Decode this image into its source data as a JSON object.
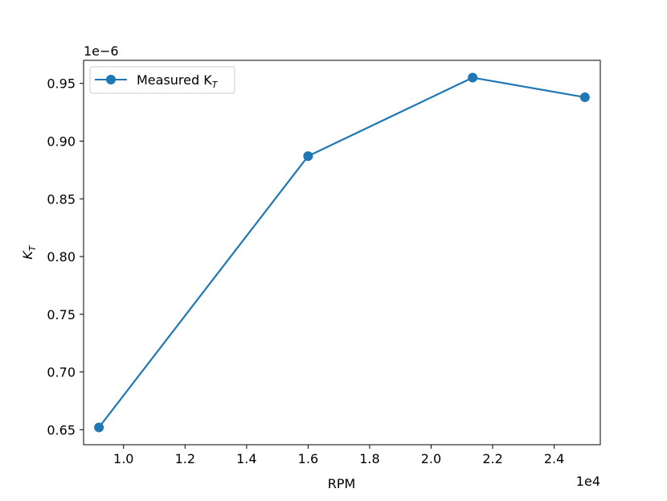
{
  "chart_data": {
    "type": "line",
    "x_scale_label": "1e4",
    "y_scale_label": "1e−6",
    "xlabel": "RPM",
    "ylabel": {
      "main": "K",
      "sub": "T"
    },
    "xlim": [
      0.87,
      2.55
    ],
    "ylim": [
      0.637,
      0.97
    ],
    "x_ticks": [
      1.0,
      1.2,
      1.4,
      1.6,
      1.8,
      2.0,
      2.2,
      2.4
    ],
    "x_tick_labels": [
      "1.0",
      "1.2",
      "1.4",
      "1.6",
      "1.8",
      "2.0",
      "2.2",
      "2.4"
    ],
    "y_ticks": [
      0.65,
      0.7,
      0.75,
      0.8,
      0.85,
      0.9,
      0.95
    ],
    "y_tick_labels": [
      "0.65",
      "0.70",
      "0.75",
      "0.80",
      "0.85",
      "0.90",
      "0.95"
    ],
    "legend": {
      "position": "upper-left",
      "label_main": "Measured K",
      "label_sub": "T"
    },
    "grid": false,
    "series": [
      {
        "color": "#1f77b4",
        "marker": "circle",
        "x": [
          0.92,
          1.6,
          2.135,
          2.5
        ],
        "y": [
          0.652,
          0.887,
          0.955,
          0.938
        ]
      }
    ]
  }
}
